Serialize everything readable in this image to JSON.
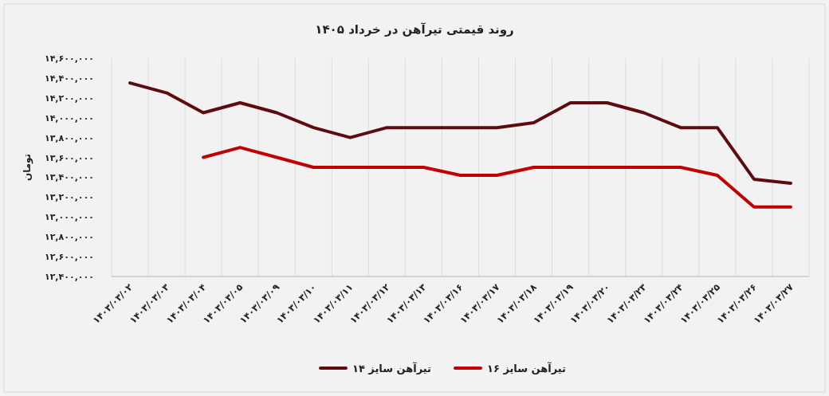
{
  "chart_data": {
    "type": "line",
    "title": "روند قیمتی تیرآهن در خرداد ۱۴۰۵",
    "ylabel": "تومان",
    "categories": [
      "۱۴۰۳/۰۳/۰۲",
      "۱۴۰۳/۰۳/۰۳",
      "۱۴۰۳/۰۳/۰۴",
      "۱۴۰۳/۰۳/۰۵",
      "۱۴۰۳/۰۳/۰۹",
      "۱۴۰۳/۰۳/۱۰",
      "۱۴۰۳/۰۳/۱۱",
      "۱۴۰۳/۰۳/۱۲",
      "۱۴۰۳/۰۳/۱۳",
      "۱۴۰۳/۰۳/۱۶",
      "۱۴۰۳/۰۳/۱۷",
      "۱۴۰۳/۰۳/۱۸",
      "۱۴۰۳/۰۳/۱۹",
      "۱۴۰۳/۰۳/۲۰",
      "۱۴۰۳/۰۳/۲۳",
      "۱۴۰۳/۰۳/۲۴",
      "۱۴۰۳/۰۳/۲۵",
      "۱۴۰۳/۰۳/۲۶",
      "۱۴۰۳/۰۳/۲۷"
    ],
    "series": [
      {
        "name": "تیرآهن سایز ۱۶",
        "color": "#c00000",
        "values": [
          null,
          null,
          13600000,
          13700000,
          13600000,
          13500000,
          13500000,
          13500000,
          13500000,
          13420000,
          13420000,
          13500000,
          13500000,
          13500000,
          13500000,
          13500000,
          13420000,
          13100000,
          13100000
        ]
      },
      {
        "name": "تیرآهن سایز ۱۴",
        "color": "#5e0b0f",
        "values": [
          14350000,
          14250000,
          14050000,
          14150000,
          14050000,
          13900000,
          13800000,
          13900000,
          13900000,
          13900000,
          13900000,
          13950000,
          14150000,
          14150000,
          14050000,
          13900000,
          13900000,
          13380000,
          13340000
        ]
      }
    ],
    "ylim": [
      12400000,
      14600000
    ],
    "yticks": [
      {
        "value": 12400000,
        "label": "۱۲,۴۰۰,۰۰۰"
      },
      {
        "value": 12600000,
        "label": "۱۲,۶۰۰,۰۰۰"
      },
      {
        "value": 12800000,
        "label": "۱۲,۸۰۰,۰۰۰"
      },
      {
        "value": 13000000,
        "label": "۱۳,۰۰۰,۰۰۰"
      },
      {
        "value": 13200000,
        "label": "۱۳,۲۰۰,۰۰۰"
      },
      {
        "value": 13400000,
        "label": "۱۳,۴۰۰,۰۰۰"
      },
      {
        "value": 13600000,
        "label": "۱۳,۶۰۰,۰۰۰"
      },
      {
        "value": 13800000,
        "label": "۱۳,۸۰۰,۰۰۰"
      },
      {
        "value": 14000000,
        "label": "۱۴,۰۰۰,۰۰۰"
      },
      {
        "value": 14200000,
        "label": "۱۴,۲۰۰,۰۰۰"
      },
      {
        "value": 14400000,
        "label": "۱۴,۴۰۰,۰۰۰"
      },
      {
        "value": 14600000,
        "label": "۱۴,۶۰۰,۰۰۰"
      }
    ],
    "grid": "x",
    "legend": "bottom",
    "marker": "none",
    "line_style": "solid"
  }
}
